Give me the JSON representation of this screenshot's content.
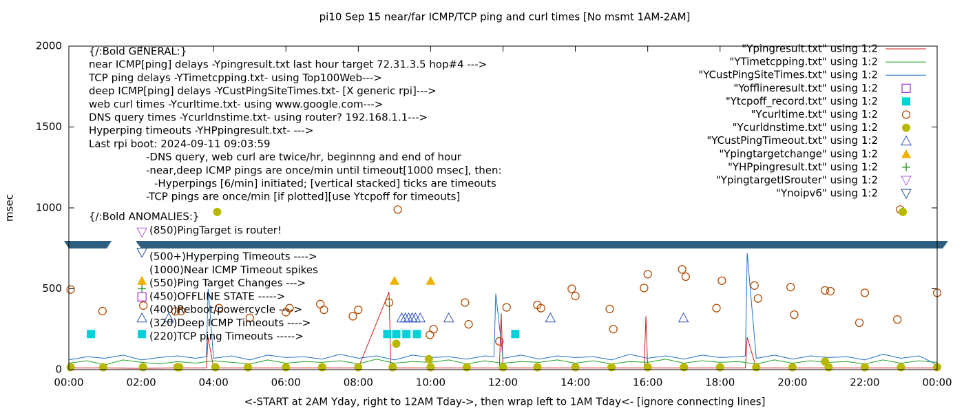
{
  "chart_data": {
    "type": "scatter",
    "title": "pi10 Sep 15  near/far ICMP/TCP ping and curl times [No msmt 1AM-2AM]",
    "xlabel": "<-START at 2AM Yday, right to 12AM Tday->, then wrap left to 1AM Tday<- [ignore connecting lines]",
    "ylabel": "msec",
    "xlim": [
      0,
      24
    ],
    "ylim": [
      0,
      2000
    ],
    "xticks": [
      {
        "value": 0,
        "label": "00:00"
      },
      {
        "value": 2,
        "label": "02:00"
      },
      {
        "value": 4,
        "label": "04:00"
      },
      {
        "value": 6,
        "label": "06:00"
      },
      {
        "value": 8,
        "label": "08:00"
      },
      {
        "value": 10,
        "label": "10:00"
      },
      {
        "value": 12,
        "label": "12:00"
      },
      {
        "value": 14,
        "label": "14:00"
      },
      {
        "value": 16,
        "label": "16:00"
      },
      {
        "value": 18,
        "label": "18:00"
      },
      {
        "value": 20,
        "label": "20:00"
      },
      {
        "value": 22,
        "label": "22:00"
      },
      {
        "value": 24,
        "label": "00:00"
      }
    ],
    "yticks": [
      0,
      500,
      1000,
      1500,
      2000
    ],
    "legend": "upper right",
    "annotations": [
      "{/:Bold GENERAL:}",
      "near ICMP[ping] delays -Ypingresult.txt last hour target 72.31.3.5 hop#4 --->",
      "TCP ping delays -YTimetcpping.txt- using Top100Web--->",
      "deep ICMP[ping] delays -YCustPingSiteTimes.txt- [X generic rpi]--->",
      "web curl times -Ycurltime.txt- using www.google.com--->",
      "DNS query times -Ycurldnstime.txt- using router? 192.168.1.1--->",
      "Hyperping timeouts -YHPpingresult.txt- --->",
      "Last rpi boot: 2024-09-11 09:03:59",
      "-DNS query, web curl are twice/hr, beginnng and end of hour",
      "-near,deep ICMP pings are once/min until timeout[1000 msec], then:",
      "-Hyperpings [6/min] initiated; [vertical stacked] ticks are timeouts",
      "-TCP pings are once/min [if plotted][use Ytcpoff for timeouts]",
      "{/:Bold ANOMALIES:}",
      "(850)PingTarget is router!",
      "(500+)Hyperping Timeouts ---->",
      "(1000)Near ICMP Timeout spikes",
      "(550)Ping Target Changes --->",
      "(450)OFFLINE STATE ----->",
      "(400)Reboot/powercycle ---->",
      "(320)Deep ICMP Timeouts ---->",
      "(220)TCP ping Timeouts ----->"
    ],
    "series": [
      {
        "name": "\"Ypingresult.txt\" using 1:2",
        "color": "#cc1a1a",
        "marker": "line",
        "x": [
          0,
          1,
          2,
          3,
          3.8,
          3.85,
          4,
          5,
          6,
          7,
          8,
          8.85,
          8.9,
          9,
          10,
          11,
          11.9,
          11.95,
          12,
          13,
          14,
          15,
          15.9,
          15.95,
          16,
          17,
          18,
          18.7,
          18.75,
          19,
          20,
          21,
          22,
          23,
          24
        ],
        "values": [
          10,
          10,
          8,
          10,
          10,
          200,
          10,
          10,
          10,
          10,
          10,
          480,
          10,
          10,
          10,
          10,
          10,
          350,
          10,
          10,
          10,
          10,
          10,
          330,
          10,
          10,
          10,
          10,
          200,
          10,
          10,
          10,
          10,
          10,
          10
        ]
      },
      {
        "name": "\"YTimetcpping.txt\" using 1:2",
        "color": "#1ea01e",
        "marker": "line",
        "x": [
          0,
          0.5,
          1,
          1.5,
          2,
          2.5,
          3,
          3.5,
          4,
          4.5,
          5,
          5.5,
          6,
          6.5,
          7,
          7.5,
          8,
          8.5,
          9,
          9.5,
          10,
          10.5,
          11,
          11.5,
          12,
          12.5,
          13,
          13.5,
          14,
          14.5,
          15,
          15.5,
          16,
          16.5,
          17,
          17.5,
          18,
          18.5,
          19,
          19.5,
          20,
          20.5,
          21,
          21.5,
          22,
          22.5,
          23,
          23.5,
          24
        ],
        "values": [
          40,
          55,
          30,
          60,
          45,
          35,
          50,
          40,
          55,
          45,
          35,
          60,
          40,
          50,
          45,
          55,
          35,
          65,
          40,
          50,
          45,
          60,
          35,
          55,
          40,
          50,
          45,
          60,
          40,
          55,
          35,
          50,
          45,
          65,
          40,
          55,
          45,
          50,
          35,
          60,
          40,
          55,
          45,
          50,
          35,
          60,
          40,
          55,
          45
        ]
      },
      {
        "name": "\"YCustPingSiteTimes.txt\" using 1:2",
        "color": "#1a6fc4",
        "marker": "line",
        "x": [
          0,
          0.5,
          1,
          1.5,
          2,
          2.5,
          3,
          3.5,
          3.8,
          3.85,
          4,
          4.5,
          5,
          5.5,
          6,
          6.5,
          7,
          7.5,
          8,
          8.5,
          9,
          9.5,
          10,
          10.5,
          11,
          11.5,
          11.75,
          11.8,
          12,
          12.5,
          13,
          13.5,
          14,
          14.5,
          15,
          15.5,
          16,
          16.5,
          17,
          17.5,
          18,
          18.5,
          18.7,
          18.75,
          19,
          19.5,
          20,
          20.5,
          21,
          21.5,
          22,
          22.5,
          23,
          23.5,
          24
        ],
        "values": [
          60,
          80,
          70,
          90,
          60,
          75,
          85,
          70,
          80,
          500,
          70,
          85,
          60,
          90,
          75,
          80,
          65,
          95,
          70,
          85,
          60,
          90,
          75,
          80,
          65,
          85,
          80,
          470,
          70,
          90,
          65,
          85,
          75,
          80,
          60,
          95,
          70,
          85,
          65,
          90,
          75,
          80,
          85,
          720,
          70,
          90,
          65,
          85,
          75,
          80,
          60,
          95,
          70,
          85,
          30
        ]
      },
      {
        "name": "\"Yofflineresult.txt\" using 1:2",
        "color": "#9400d3",
        "marker": "square-open",
        "x": [
          2.02
        ],
        "values": [
          450
        ]
      },
      {
        "name": "\"Ytcpoff_record.txt\" using 1:2",
        "color": "#00d0d8",
        "marker": "square-filled",
        "x": [
          0.61,
          2.02,
          8.8,
          9.05,
          9.33,
          9.62,
          12.34
        ],
        "values": [
          220,
          220,
          220,
          220,
          220,
          220,
          220
        ]
      },
      {
        "name": "\"Ycurltime.txt\" using 1:2",
        "color": "#b34a00",
        "marker": "circle-open",
        "x": [
          0.05,
          0.93,
          2.06,
          2.95,
          3.1,
          4.15,
          5.0,
          6.0,
          6.1,
          6.95,
          7.05,
          7.85,
          8.0,
          8.85,
          9.09,
          9.98,
          10.08,
          10.95,
          11.05,
          11.9,
          12.1,
          12.95,
          13.05,
          13.9,
          14.0,
          14.95,
          15.05,
          15.9,
          16.0,
          16.95,
          17.05,
          17.9,
          18.05,
          18.95,
          19.05,
          19.95,
          20.05,
          20.9,
          21.05,
          21.85,
          22.0,
          22.9,
          22.98,
          24.0
        ],
        "values": [
          495,
          362,
          396,
          360,
          362,
          380,
          320,
          355,
          380,
          405,
          370,
          330,
          370,
          415,
          990,
          215,
          250,
          415,
          280,
          175,
          385,
          400,
          380,
          500,
          455,
          375,
          250,
          505,
          590,
          620,
          575,
          380,
          550,
          520,
          440,
          510,
          340,
          490,
          485,
          290,
          475,
          310,
          990,
          475
        ]
      },
      {
        "name": "\"Ycurldnstime.txt\" using 1:2",
        "color": "#b8b800",
        "marker": "circle-filled",
        "x": [
          0.05,
          0.95,
          2.05,
          3.0,
          3.05,
          4.05,
          4.1,
          4.95,
          6.0,
          7.0,
          8.0,
          8.95,
          9.05,
          9.95,
          10.0,
          11.0,
          12.0,
          12.95,
          14.0,
          15.0,
          16.0,
          17.0,
          18.0,
          19.0,
          20.0,
          20.9,
          21.0,
          22.0,
          23.0,
          23.05,
          24.0
        ],
        "values": [
          15,
          15,
          15,
          15,
          15,
          15,
          975,
          15,
          15,
          15,
          15,
          15,
          160,
          65,
          15,
          15,
          15,
          15,
          15,
          15,
          15,
          15,
          15,
          15,
          15,
          50,
          15,
          15,
          15,
          975,
          15
        ]
      },
      {
        "name": "\"YCustPingTimeout.txt\" using 1:2",
        "color": "#2b4fbf",
        "marker": "triangle-open",
        "x": [
          2.02,
          2.76,
          9.2,
          9.3,
          9.39,
          9.49,
          9.58,
          9.71,
          10.5,
          13.31,
          16.99
        ],
        "values": [
          320,
          320,
          320,
          320,
          320,
          320,
          320,
          320,
          320,
          320,
          320
        ]
      },
      {
        "name": "\"Ypingtargetchange\" using 1:2",
        "color": "#f0b000",
        "marker": "triangle-filled",
        "x": [
          2.02,
          9.0,
          10.0
        ],
        "values": [
          550,
          550,
          550
        ]
      },
      {
        "name": "\"YHPpingresult.txt\" using 1:2",
        "color": "#1e8a1e",
        "marker": "plus",
        "x": [
          2.02
        ],
        "values": [
          500
        ]
      },
      {
        "name": "\"YpingtargetISrouter\" using 1:2",
        "color": "#b060e0",
        "marker": "triangle-down-open",
        "x": [
          2.02
        ],
        "values": [
          850
        ]
      },
      {
        "name": "\"Ynoipv6\" using 1:2",
        "color": "#1f4e99",
        "marker": "triangle-down-open",
        "x": [
          2.02
        ],
        "values": [
          725
        ]
      }
    ]
  }
}
